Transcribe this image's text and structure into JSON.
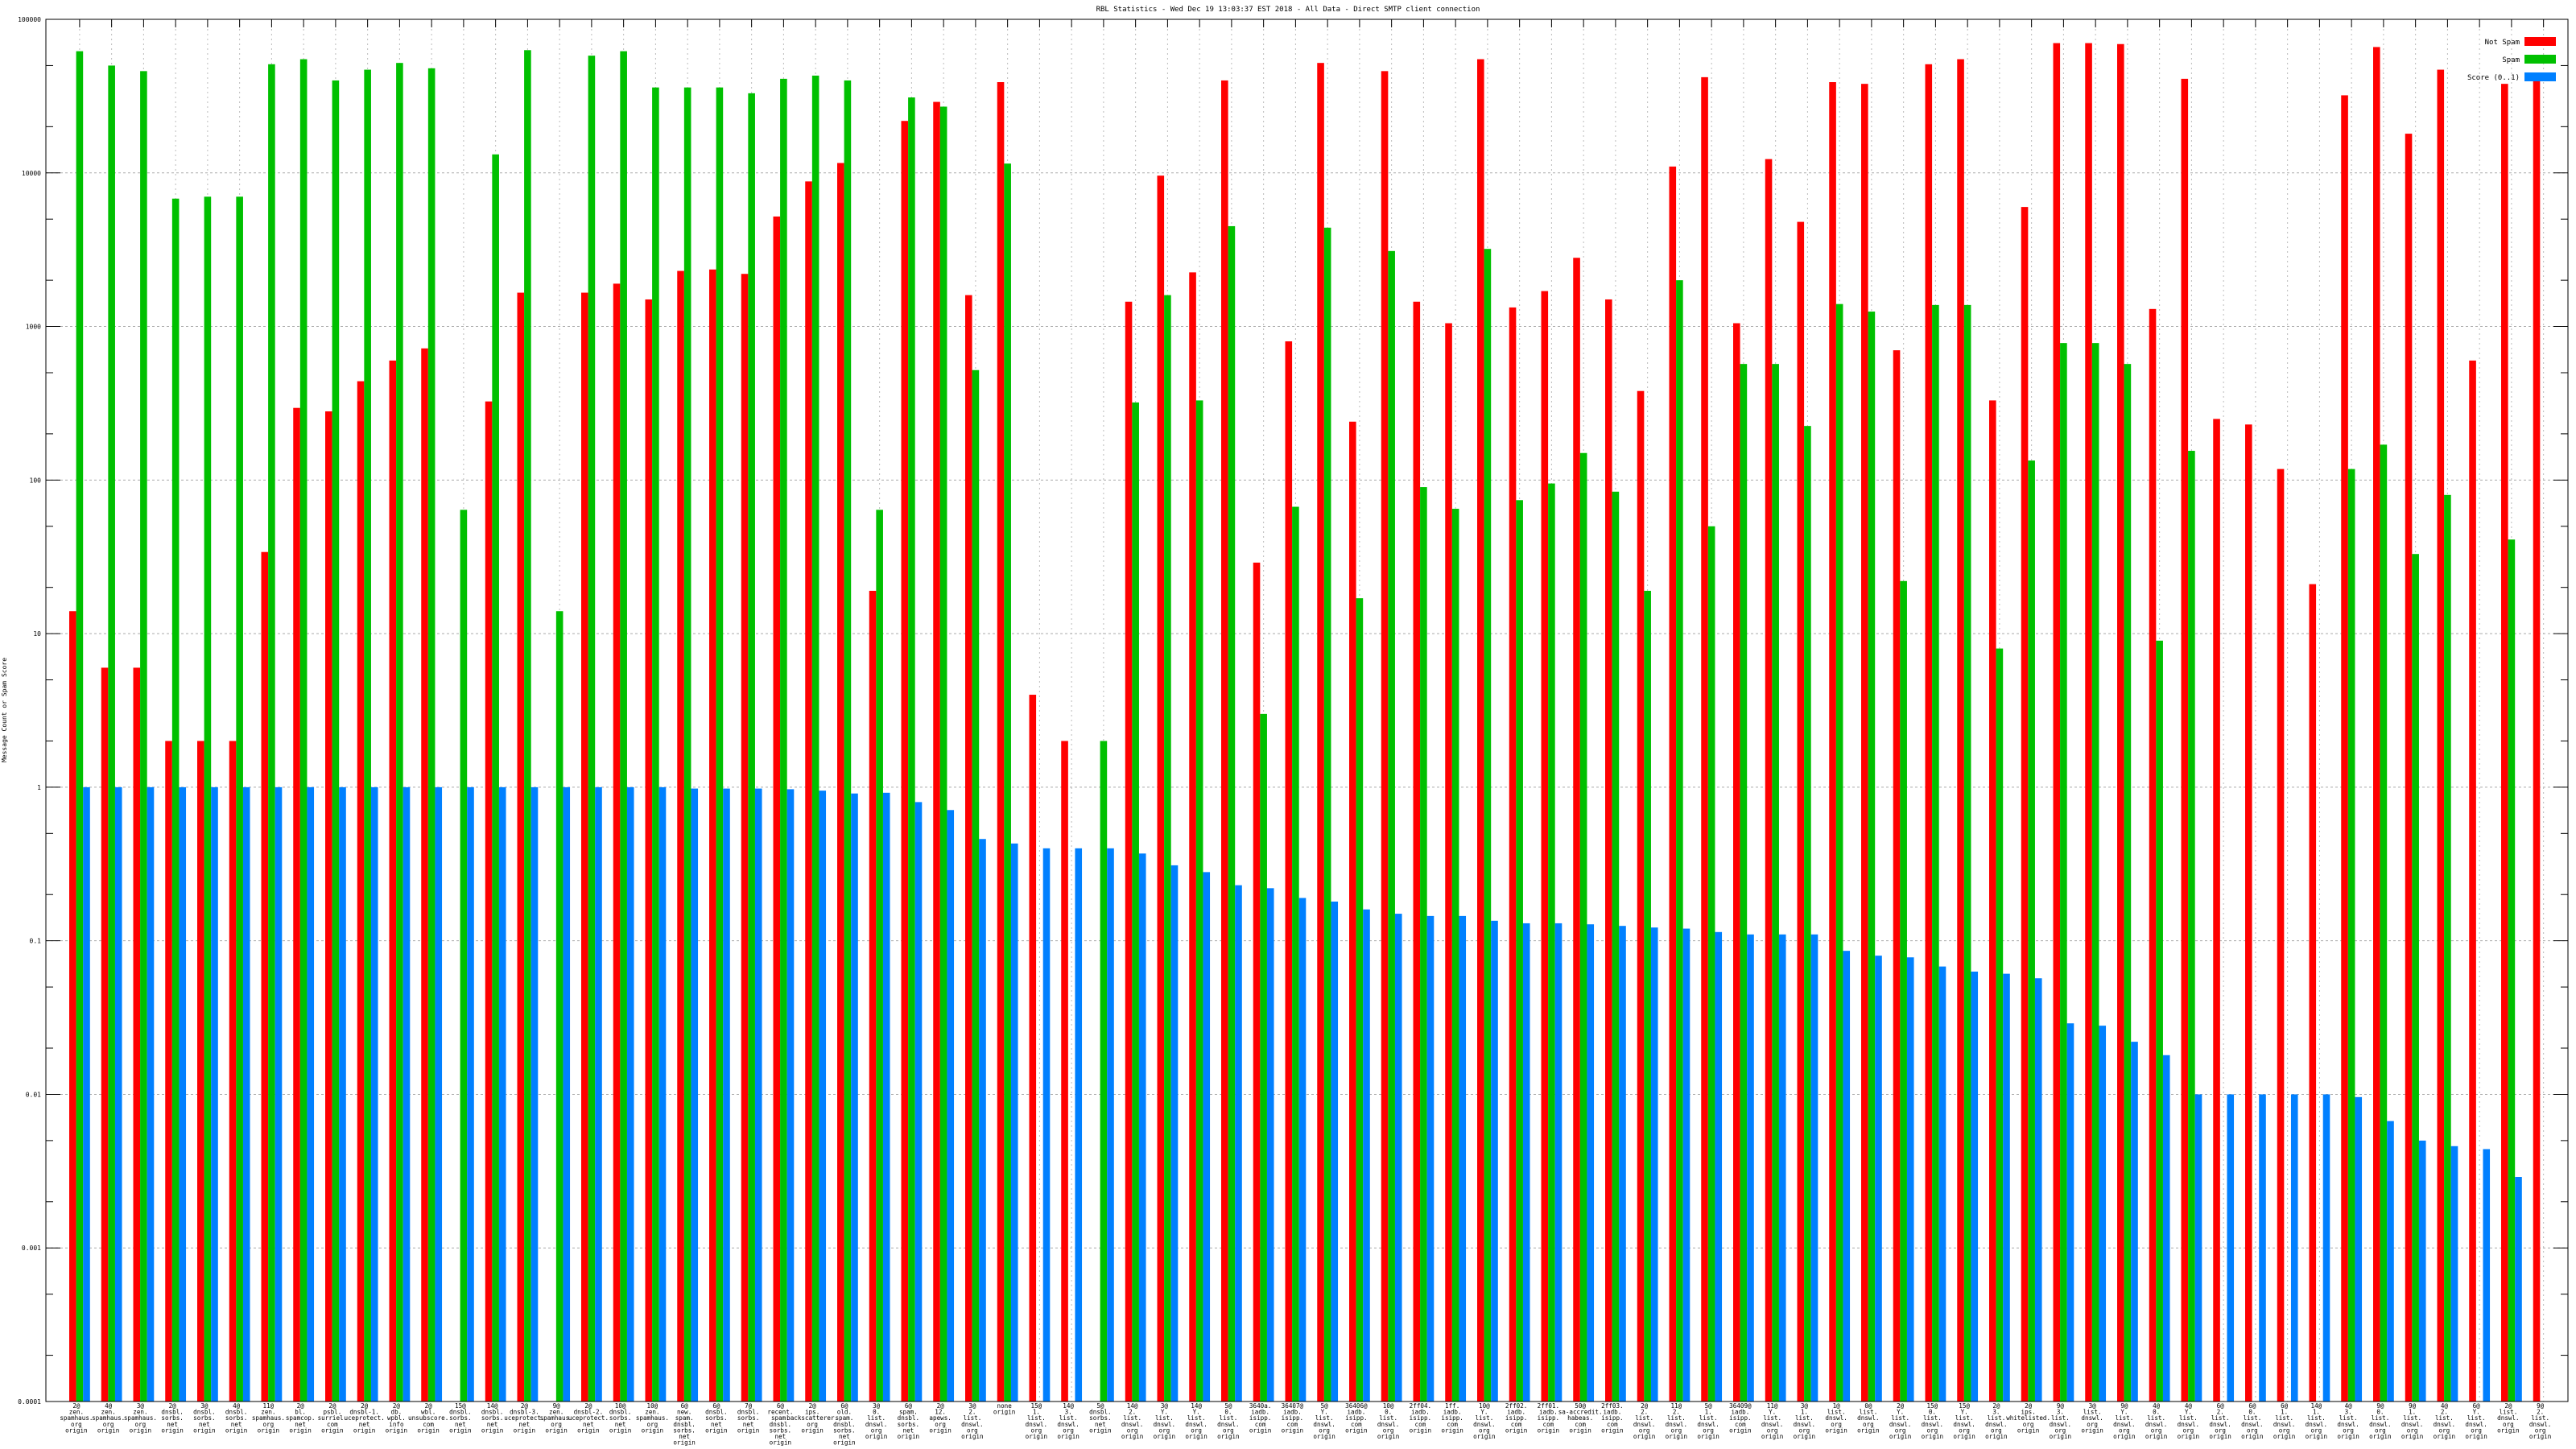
{
  "chart_data": {
    "type": "bar",
    "title": "RBL Statistics - Wed Dec 19 13:03:37 EST 2018 - All Data - Direct SMTP client connection",
    "xlabel": "",
    "ylabel": "Message Count or Spam Score",
    "yscale": "log",
    "ylim": [
      0.0001,
      100000
    ],
    "yticks": [
      "100000",
      "10000",
      "1000",
      "100",
      "10",
      "1",
      "0.1",
      "0.01",
      "0.001",
      "0.0001"
    ],
    "grid": true,
    "legend_position": "top-right",
    "categories": [
      "2@zen.spamhaus.org origin",
      "4@zen.spamhaus.org origin",
      "3@zen.spamhaus.org origin",
      "2@dnsbl.sorbs.net origin",
      "3@dnsbl.sorbs.net origin",
      "4@dnsbl.sorbs.net origin",
      "11@zen.spamhaus.org origin",
      "2@bl.spamcop.net origin",
      "2@psbl.surriel.com origin",
      "2@dnsbl-1.uceprotect.net origin",
      "2@db.wpbl.info origin",
      "2@wbl.unsubscore.com origin",
      "15@dnsbl.sorbs.net origin",
      "14@dnsbl.sorbs.net origin",
      "2@dnsbl-3.uceprotect.net origin",
      "9@zen.spamhaus.org origin",
      "2@dnsbl-2.uceprotect.net origin",
      "10@dnsbl.sorbs.net origin",
      "10@zen.spamhaus.org origin",
      "6@new.spam.dnsbl.sorbs.net origin",
      "6@dnsbl.sorbs.net origin",
      "7@dnsbl.sorbs.net origin",
      "6@recent.spam.dnsbl.sorbs.net origin",
      "2@ips.backscatterer.org origin",
      "6@old.spam.dnsbl.sorbs.net origin",
      "3@0.list.dnswl.org origin",
      "6@spam.dnsbl.sorbs.net origin",
      "2@12.apews.org origin",
      "3@2.list.dnswl.org origin",
      "none origin",
      "15@1.list.dnswl.org origin",
      "14@3.list.dnswl.org origin",
      "5@dnsbl.sorbs.net origin",
      "14@2.list.dnswl.org origin",
      "3@Y.list.dnswl.org origin",
      "14@Y.list.dnswl.org origin",
      "5@0.list.dnswl.org origin",
      "3640a.iadb.isipp.com origin",
      "36407@iadb.isipp.com origin",
      "5@Y.list.dnswl.org origin",
      "36406@iadb.isipp.com origin",
      "10@0.list.dnswl.org origin",
      "2ff04.iadb.isipp.com origin",
      "1ff.iadb.isipp.com origin",
      "10@Y.list.dnswl.org origin",
      "2ff02.iadb.isipp.com origin",
      "2ff01.iadb.isipp.com origin",
      "50@sa-accredit.habeas.com origin",
      "2ff03.iadb.isipp.com origin",
      "2@2.list.dnswl.org origin",
      "11@2.list.dnswl.org origin",
      "5@1.list.dnswl.org origin",
      "36409@iadb.isipp.com origin",
      "11@Y.list.dnswl.org origin",
      "3@1.list.dnswl.org origin",
      "1@list.dnswl.org origin",
      "0@list.dnswl.org origin",
      "2@Y.list.dnswl.org origin",
      "15@0.list.dnswl.org origin",
      "15@Y.list.dnswl.org origin",
      "2@3.list.dnswl.org origin",
      "2@ips.whitelisted.org origin",
      "9@3.list.dnswl.org origin",
      "3@list.dnswl.org origin",
      "9@Y.list.dnswl.org origin",
      "4@0.list.dnswl.org origin",
      "4@Y.list.dnswl.org origin",
      "6@2.list.dnswl.org origin",
      "6@0.list.dnswl.org origin",
      "6@1.list.dnswl.org origin",
      "14@1.list.dnswl.org origin",
      "4@3.list.dnswl.org origin",
      "9@0.list.dnswl.org origin",
      "9@1.list.dnswl.org origin",
      "4@2.list.dnswl.org origin",
      "6@Y.list.dnswl.org origin",
      "2@list.dnswl.org origin",
      "9@2.list.dnswl.org origin"
    ],
    "series": [
      {
        "name": "Not Spam",
        "color": "#ff0000",
        "values": [
          14,
          6,
          6,
          2,
          2,
          2,
          34,
          295,
          280,
          440,
          600,
          720,
          0,
          325,
          1660,
          0,
          1660,
          1900,
          1500,
          2300,
          2350,
          2200,
          5200,
          8800,
          11600,
          19,
          21800,
          29000,
          1600,
          39000,
          4,
          2,
          0,
          1450,
          9600,
          2250,
          40000,
          29,
          800,
          52000,
          240,
          46000,
          1450,
          1050,
          55000,
          1330,
          1700,
          2800,
          1500,
          380,
          11000,
          42000,
          1050,
          12300,
          4800,
          39000,
          38000,
          700,
          51000,
          55000,
          330,
          6000,
          70000,
          70000,
          69000,
          1300,
          41000,
          250,
          230,
          118,
          21,
          32000,
          66000,
          18000,
          47000,
          600,
          38000,
          42000
        ]
      },
      {
        "name": "Spam",
        "color": "#00c000",
        "values": [
          62000,
          50000,
          46000,
          6800,
          7000,
          7000,
          51000,
          55000,
          40000,
          47000,
          52000,
          48000,
          64,
          13200,
          63000,
          14,
          58000,
          62000,
          36000,
          36000,
          36000,
          33000,
          41000,
          43000,
          40000,
          64,
          31000,
          27000,
          520,
          11500,
          0,
          0,
          2,
          320,
          1600,
          330,
          4500,
          3,
          67,
          4400,
          17,
          3100,
          90,
          65,
          3200,
          74,
          95,
          150,
          84,
          19,
          2000,
          50,
          570,
          570,
          225,
          1400,
          1250,
          22,
          1380,
          1380,
          8,
          134,
          780,
          780,
          570,
          9,
          155,
          0,
          0,
          0,
          0,
          118,
          170,
          33,
          80,
          0,
          41,
          0
        ]
      },
      {
        "name": "Score (0..1)",
        "color": "#0080ff",
        "values": [
          1,
          1,
          1,
          1,
          1,
          1,
          1,
          1,
          1,
          1,
          1,
          1,
          1,
          1,
          1,
          1,
          1,
          1,
          1,
          0.98,
          0.98,
          0.98,
          0.97,
          0.95,
          0.91,
          0.92,
          0.8,
          0.71,
          0.46,
          0.43,
          0.4,
          0.4,
          0.4,
          0.37,
          0.31,
          0.28,
          0.23,
          0.22,
          0.19,
          0.18,
          0.16,
          0.15,
          0.145,
          0.145,
          0.135,
          0.13,
          0.13,
          0.128,
          0.125,
          0.122,
          0.12,
          0.114,
          0.11,
          0.11,
          0.11,
          0.086,
          0.08,
          0.078,
          0.068,
          0.063,
          0.061,
          0.057,
          0.029,
          0.028,
          0.022,
          0.018,
          0.01,
          0.01,
          0.01,
          0.01,
          0.01,
          0.0096,
          0.0067,
          0.005,
          0.0046,
          0.0044,
          0.0029,
          0
        ]
      }
    ]
  }
}
